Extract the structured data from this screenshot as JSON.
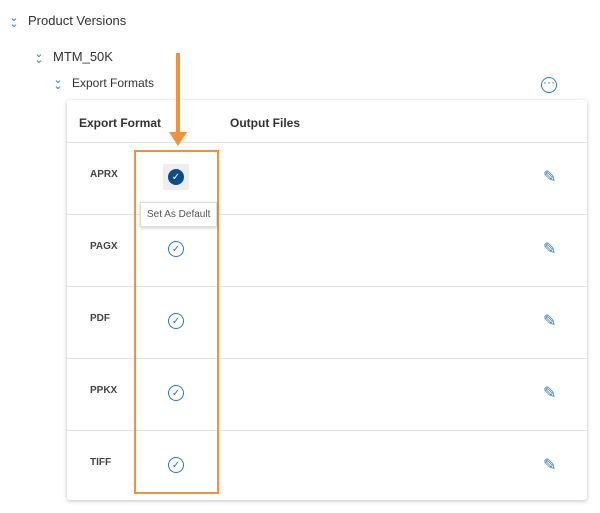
{
  "tree": {
    "level1": "Product Versions",
    "level2": "MTM_50K",
    "level3": "Export Formats"
  },
  "table": {
    "headers": [
      "Export Format",
      "Output Files"
    ],
    "rows": [
      {
        "format": "APRX",
        "default": true
      },
      {
        "format": "PAGX",
        "default": false
      },
      {
        "format": "PDF",
        "default": false
      },
      {
        "format": "PPKX",
        "default": false
      },
      {
        "format": "TIFF",
        "default": false
      }
    ]
  },
  "tooltip": "Set As Default",
  "colors": {
    "accent": "#2b7bc6",
    "annotation": "#f0923b"
  }
}
